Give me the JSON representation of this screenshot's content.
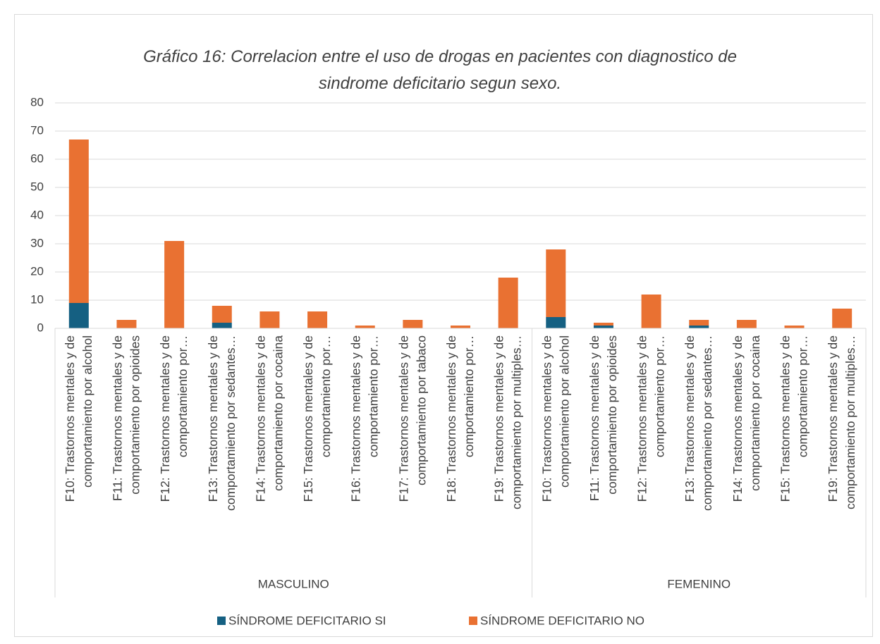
{
  "chart_data": {
    "type": "stacked_bar",
    "title": "Gráfico 16: Correlacion entre el uso de drogas en pacientes con diagnostico de sindrome deficitario segun sexo.",
    "groups": [
      {
        "label": "MASCULINO",
        "categories": [
          "F10: Trastornos mentales y de comportamiento por alcohol",
          "F11: Trastornos mentales y de comportamiento por opioides",
          "F12: Trastornos mentales y de comportamiento por…",
          "F13: Trastornos mentales y de comportamiento por sedantes…",
          "F14: Trastornos mentales y de comportamiento por cocaina",
          "F15: Trastornos mentales y de comportamiento por…",
          "F16: Trastornos mentales y de comportamiento por…",
          "F17: Trastornos mentales y de comportamiento por  tabaco",
          "F18: Trastornos mentales y de comportamiento por…",
          "F19: Trastornos mentales y de comportamiento por multiples…"
        ]
      },
      {
        "label": "FEMENINO",
        "categories": [
          "F10: Trastornos mentales y de comportamiento por alcohol",
          "F11: Trastornos mentales y de comportamiento por opioides",
          "F12: Trastornos mentales y de comportamiento por…",
          "F13: Trastornos mentales y de comportamiento por sedantes…",
          "F14: Trastornos mentales y de comportamiento por cocaina",
          "F15: Trastornos mentales y de comportamiento por…",
          "F19: Trastornos mentales y de comportamiento por multiples…"
        ]
      }
    ],
    "series": [
      {
        "name": "SÍNDROME DEFICITARIO SI",
        "color": "#156082",
        "values": [
          9,
          0,
          0,
          2,
          0,
          0,
          0,
          0,
          0,
          0,
          4,
          1,
          0,
          1,
          0,
          0,
          0
        ]
      },
      {
        "name": "SÍNDROME DEFICITARIO NO",
        "color": "#e97132",
        "values": [
          58,
          3,
          31,
          6,
          6,
          6,
          1,
          3,
          1,
          18,
          24,
          1,
          12,
          2,
          3,
          1,
          7
        ]
      }
    ],
    "ylim": [
      0,
      80
    ],
    "yticks": [
      0,
      10,
      20,
      30,
      40,
      50,
      60,
      70,
      80
    ],
    "grid": true,
    "legend": "bottom"
  }
}
